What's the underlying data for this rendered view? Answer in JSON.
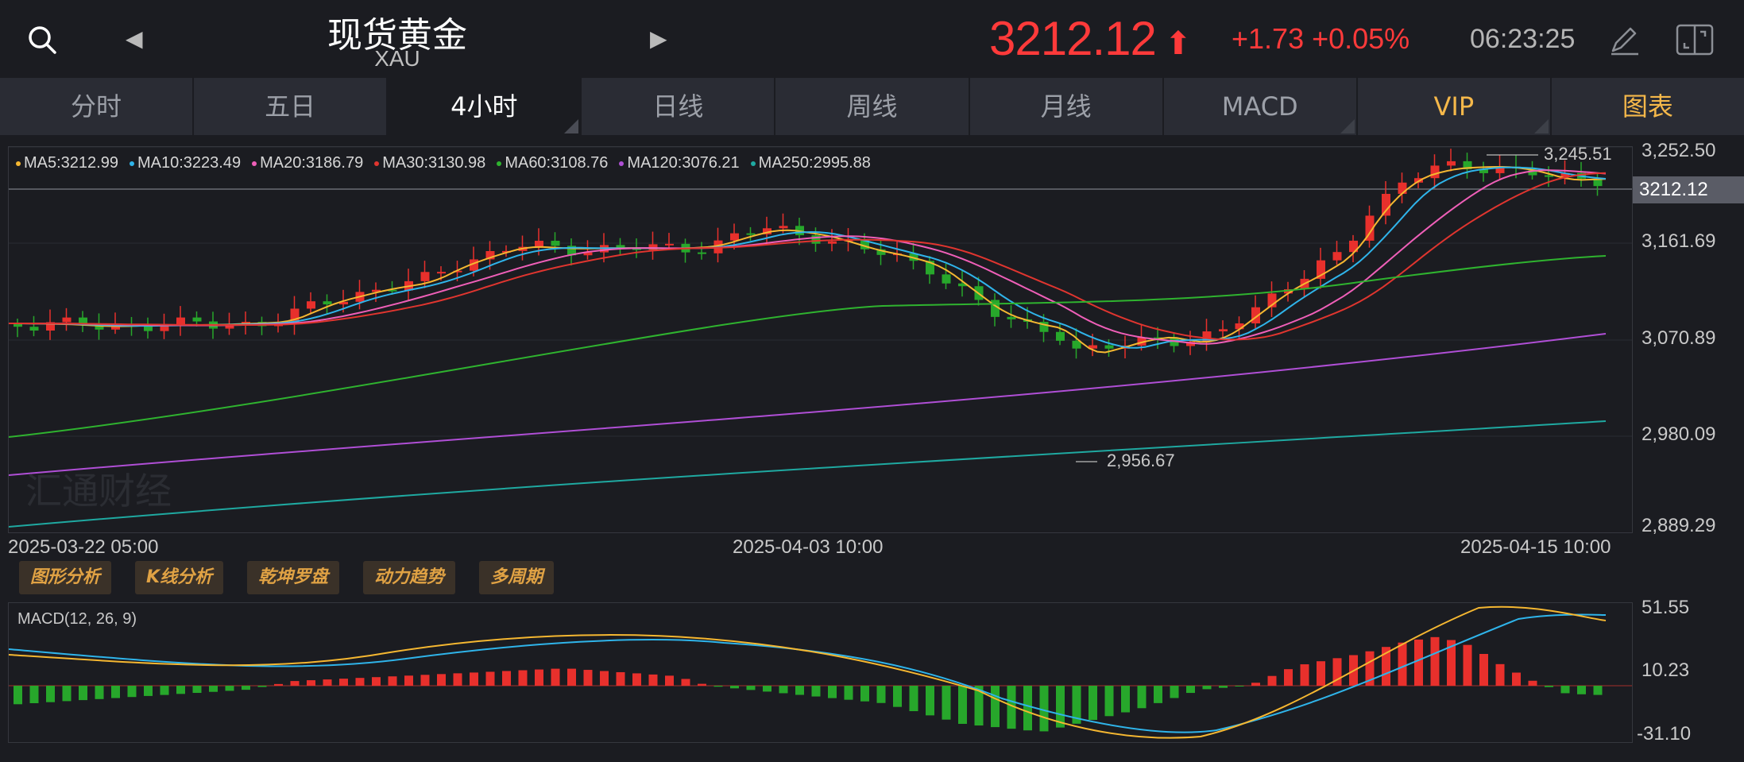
{
  "header": {
    "title": "现货黄金",
    "code": "XAU",
    "price": "3212.12",
    "change": "+1.73 +0.05%",
    "time": "06:23:25",
    "prev_icon": "left-triangle-icon",
    "next_icon": "right-triangle-icon"
  },
  "tabs": [
    {
      "label": "分时"
    },
    {
      "label": "五日"
    },
    {
      "label": "4小时"
    },
    {
      "label": "日线"
    },
    {
      "label": "周线"
    },
    {
      "label": "月线"
    },
    {
      "label": "MACD"
    },
    {
      "label": "VIP"
    },
    {
      "label": "图表"
    }
  ],
  "active_tab": "4小时",
  "ma_legend": [
    {
      "label": "MA5:3212.99",
      "color": "#f5b731"
    },
    {
      "label": "MA10:3223.49",
      "color": "#2fb4ea"
    },
    {
      "label": "MA20:3186.79",
      "color": "#ef5fb8"
    },
    {
      "label": "MA30:3130.98",
      "color": "#e0352f"
    },
    {
      "label": "MA60:3108.76",
      "color": "#2fb32f"
    },
    {
      "label": "MA120:3076.21",
      "color": "#b04fd6"
    },
    {
      "label": "MA250:2995.88",
      "color": "#1fa9a1"
    }
  ],
  "price_axis": {
    "labels": [
      "3,252.50",
      "3,161.69",
      "3,070.89",
      "2,980.09",
      "2,889.29"
    ],
    "current": "3212.12"
  },
  "annotations": {
    "high": "3,245.51",
    "low": "2,956.67"
  },
  "time_axis": [
    "2025-03-22 05:00",
    "2025-04-03 10:00",
    "2025-04-15 10:00"
  ],
  "watermark": "汇通财经",
  "tools": [
    "图形分析",
    "K线分析",
    "乾坤罗盘",
    "动力趋势",
    "多周期"
  ],
  "macd": {
    "label": "MACD(12, 26, 9)",
    "axis": [
      "51.55",
      "10.23",
      "-31.10"
    ]
  },
  "colors": {
    "up": "#e8302c",
    "down": "#27a72b",
    "accent": "#ff3a3a",
    "gold": "#f5b84a"
  }
}
